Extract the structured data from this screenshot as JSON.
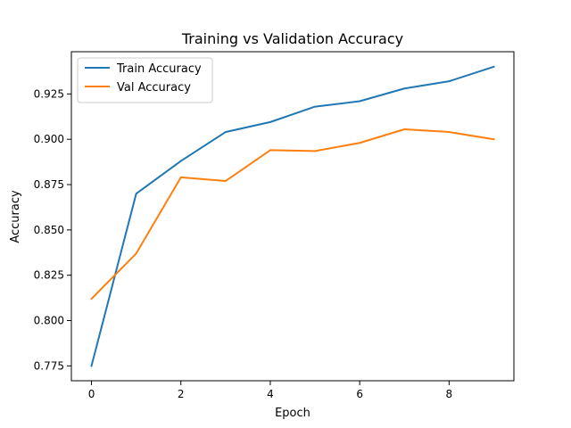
{
  "chart_data": {
    "type": "line",
    "title": "Training vs Validation Accuracy",
    "xlabel": "Epoch",
    "ylabel": "Accuracy",
    "x": [
      0,
      1,
      2,
      3,
      4,
      5,
      6,
      7,
      8,
      9
    ],
    "series": [
      {
        "name": "Train Accuracy",
        "color": "#1f77b4",
        "values": [
          0.775,
          0.87,
          0.888,
          0.904,
          0.9095,
          0.918,
          0.921,
          0.928,
          0.932,
          0.94
        ]
      },
      {
        "name": "Val Accuracy",
        "color": "#ff7f0e",
        "values": [
          0.812,
          0.837,
          0.879,
          0.877,
          0.894,
          0.8935,
          0.898,
          0.9055,
          0.904,
          0.9
        ]
      }
    ],
    "xlim": [
      -0.45,
      9.45
    ],
    "ylim": [
      0.7668,
      0.9483
    ],
    "xticks": [
      0,
      2,
      4,
      6,
      8
    ],
    "yticks": [
      0.775,
      0.8,
      0.825,
      0.85,
      0.875,
      0.9,
      0.925
    ],
    "ytick_labels": [
      "0.775",
      "0.800",
      "0.825",
      "0.850",
      "0.875",
      "0.900",
      "0.925"
    ],
    "legend_position": "top-left",
    "grid": false
  }
}
